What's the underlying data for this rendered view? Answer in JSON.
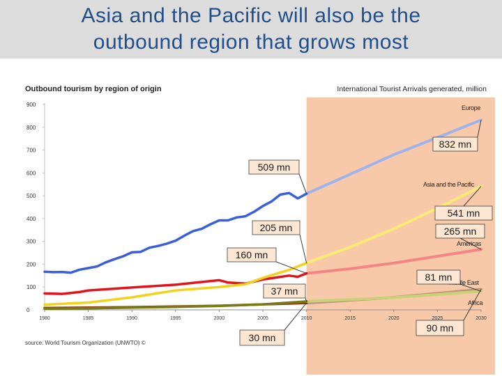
{
  "slide": {
    "title_line1": "Asia and the Pacific will also be the",
    "title_line2": "outbound region that grows most"
  },
  "chart_data": {
    "type": "line",
    "title": "Outbound tourism by region of origin",
    "subtitle": "International Tourist Arrivals generated, million",
    "source": "source: World Tourism Organization (UNWTO) ©",
    "ylim": [
      0,
      900
    ],
    "xlim": [
      1980,
      2030
    ],
    "yticks": [
      0,
      100,
      200,
      300,
      400,
      500,
      600,
      700,
      800,
      900
    ],
    "xticks": [
      "1980",
      "1985",
      "1990",
      "1995",
      "2000",
      "2005",
      "2010",
      "2015",
      "2020",
      "2025",
      "2030"
    ],
    "forecast_from": 2010,
    "colors": {
      "forecast_shade": "#f8c9a8",
      "callout_box": "#fde7d3",
      "callout_border": "#3a3a3a"
    },
    "series": [
      {
        "name": "Europe",
        "color": "#3b5fd9",
        "forecast_color": "#9fb2ec",
        "actual": {
          "x": [
            1980,
            1981,
            1982,
            1983,
            1984,
            1985,
            1986,
            1987,
            1988,
            1989,
            1990,
            1991,
            1992,
            1993,
            1994,
            1995,
            1996,
            1997,
            1998,
            1999,
            2000,
            2001,
            2002,
            2003,
            2004,
            2005,
            2006,
            2007,
            2008,
            2009,
            2010
          ],
          "y": [
            167,
            165,
            166,
            163,
            176,
            183,
            190,
            208,
            222,
            235,
            252,
            254,
            272,
            280,
            290,
            303,
            325,
            345,
            355,
            375,
            392,
            392,
            405,
            410,
            430,
            455,
            475,
            505,
            512,
            488,
            509
          ]
        },
        "forecast": {
          "x": [
            2010,
            2015,
            2020,
            2025,
            2030
          ],
          "y": [
            509,
            594,
            680,
            755,
            832
          ]
        }
      },
      {
        "name": "Asia and the Pacific",
        "color": "#f2d21c",
        "forecast_color": "#f8ea74",
        "actual": {
          "x": [
            1980,
            1985,
            1990,
            1995,
            2000,
            2003,
            2005,
            2008,
            2010
          ],
          "y": [
            23,
            32,
            55,
            85,
            100,
            112,
            140,
            175,
            205
          ]
        },
        "forecast": {
          "x": [
            2010,
            2015,
            2020,
            2025,
            2030
          ],
          "y": [
            205,
            275,
            355,
            445,
            541
          ]
        }
      },
      {
        "name": "Americas",
        "color": "#e0141c",
        "forecast_color": "#f58585",
        "actual": {
          "x": [
            1980,
            1982,
            1984,
            1985,
            1990,
            1995,
            2000,
            2001,
            2003,
            2005,
            2008,
            2009,
            2010
          ],
          "y": [
            72,
            70,
            78,
            85,
            98,
            110,
            130,
            120,
            115,
            133,
            150,
            145,
            160
          ]
        },
        "forecast": {
          "x": [
            2010,
            2015,
            2020,
            2025,
            2030
          ],
          "y": [
            160,
            180,
            205,
            235,
            265
          ]
        }
      },
      {
        "name": "Middle East",
        "color": "#7a7a14",
        "forecast_color": "#c8d07a",
        "actual": {
          "x": [
            1980,
            1985,
            1990,
            1995,
            2000,
            2005,
            2010
          ],
          "y": [
            5,
            7,
            10,
            13,
            17,
            24,
            37
          ]
        },
        "forecast": {
          "x": [
            2010,
            2015,
            2020,
            2025,
            2030
          ],
          "y": [
            37,
            45,
            54,
            67,
            81
          ]
        }
      },
      {
        "name": "Africa",
        "color": "#8b3a12",
        "forecast_color": "#c09478",
        "actual": {
          "x": [
            1980,
            1985,
            1990,
            1995,
            2000,
            2005,
            2010
          ],
          "y": [
            8,
            10,
            12,
            15,
            18,
            24,
            30
          ]
        },
        "forecast": {
          "x": [
            2010,
            2015,
            2020,
            2025,
            2030
          ],
          "y": [
            30,
            42,
            55,
            72,
            90
          ]
        }
      }
    ],
    "callouts": [
      {
        "label": "832 mn",
        "value": 832,
        "year": 2030
      },
      {
        "label": "509 mn",
        "value": 509,
        "year": 2010
      },
      {
        "label": "205 mn",
        "value": 205,
        "year": 2010
      },
      {
        "label": "160 mn",
        "value": 160,
        "year": 2010
      },
      {
        "label": "37 mn",
        "value": 37,
        "year": 2010
      },
      {
        "label": "30 mn",
        "value": 30,
        "year": 2010
      },
      {
        "label": "541 mn",
        "value": 541,
        "year": 2030
      },
      {
        "label": "265 mn",
        "value": 265,
        "year": 2030
      },
      {
        "label": "81 mn",
        "value": 81,
        "year": 2030
      },
      {
        "label": "90 mn",
        "value": 90,
        "year": 2030
      }
    ]
  }
}
